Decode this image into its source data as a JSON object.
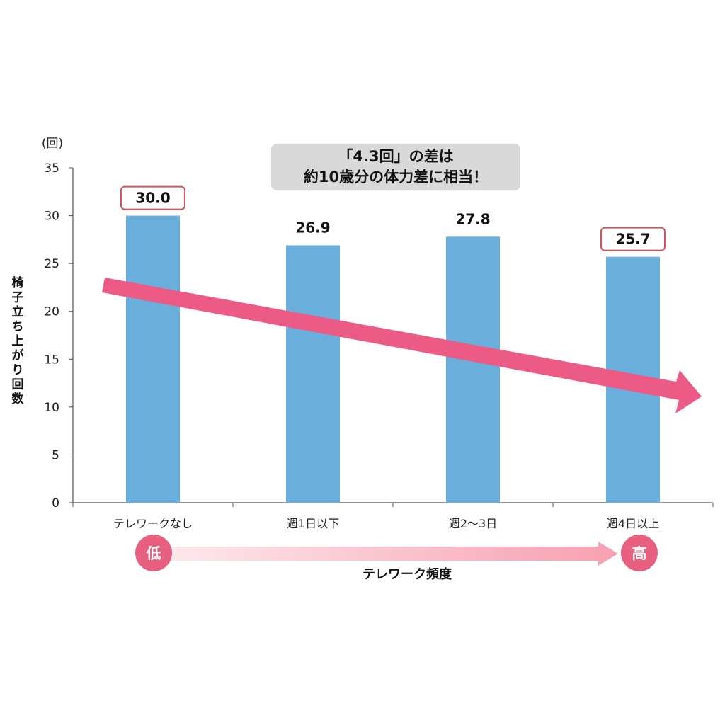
{
  "chart_data": {
    "type": "bar",
    "categories": [
      "テレワークなし",
      "週1日以下",
      "週2〜3日",
      "週4日以上"
    ],
    "values": [
      30.0,
      26.9,
      27.8,
      25.7
    ],
    "value_labels": [
      "30.0",
      "26.9",
      "27.8",
      "25.7"
    ],
    "highlighted": [
      true,
      false,
      false,
      true
    ],
    "ylabel": "椅子立ち上がり回数",
    "yunit": "(回)",
    "xlabel": "テレワーク頻度",
    "ylim": [
      0,
      35
    ],
    "yticks": [
      "0",
      "5",
      "10",
      "15",
      "20",
      "25",
      "30",
      "35"
    ],
    "grid": false,
    "annotation": [
      "「4.3回」の差は",
      "約10歳分の体力差に相当！"
    ],
    "frequency_low": "低",
    "frequency_high": "高",
    "colors": {
      "bar": "#6aaedb",
      "trend_arrow": "#ec5a86",
      "highlight_border": "#c9585f",
      "annotation_bg": "#d9d9d9",
      "circle": "#e8607f"
    }
  }
}
